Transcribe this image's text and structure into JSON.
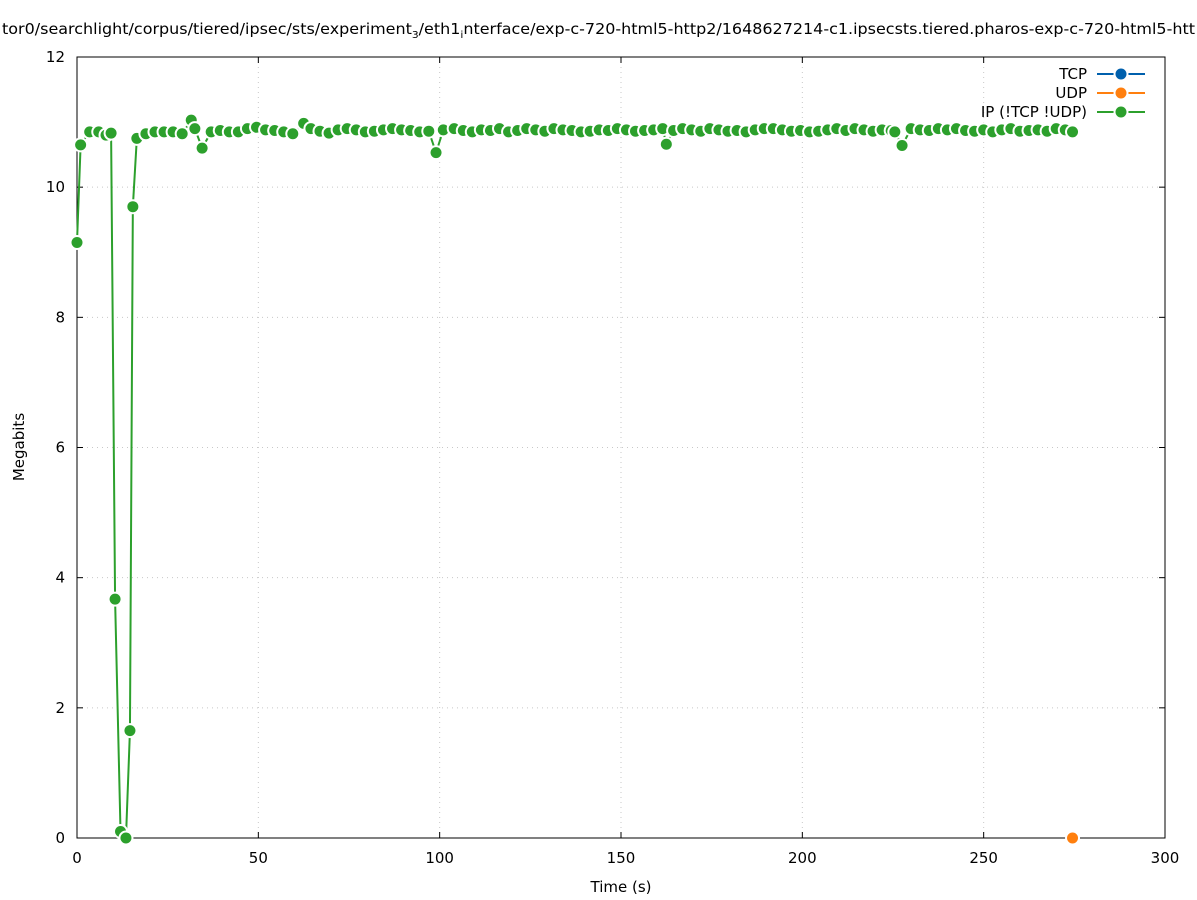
{
  "chart_data": {
    "type": "line",
    "title_parts": [
      "tor0/searchlight/corpus/tiered/ipsec/sts/experiment",
      "3",
      "/eth1",
      "i",
      "nterface/exp-c-720-html5-http2/1648627214-c1.ipsecsts.tiered.pharos-exp-c-720-html5-htt"
    ],
    "xlabel": "Time (s)",
    "ylabel": "Megabits",
    "xlim": [
      0,
      300
    ],
    "ylim": [
      0,
      12
    ],
    "xticks": [
      0,
      50,
      100,
      150,
      200,
      250,
      300
    ],
    "yticks": [
      0,
      2,
      4,
      6,
      8,
      10,
      12
    ],
    "grid": true,
    "legend_position": "top-right",
    "series": [
      {
        "name": "TCP",
        "color": "#0060ad",
        "x": [],
        "y": []
      },
      {
        "name": "UDP",
        "color": "#ff7f0e",
        "x": [
          274.5
        ],
        "y": [
          0
        ]
      },
      {
        "name": "IP (!TCP  !UDP)",
        "color": "#2ca02c",
        "x": [
          0,
          1,
          3.5,
          6,
          8,
          9.4,
          10.5,
          12,
          13.5,
          14.6,
          15.4,
          16.5,
          19,
          21.5,
          24,
          26.5,
          29,
          31.5,
          32.5,
          34.5,
          37,
          39.5,
          42,
          44.5,
          47,
          49.5,
          52,
          54.5,
          57,
          59.5,
          62.5,
          64.5,
          67,
          69.5,
          72,
          74.5,
          77,
          79.5,
          82,
          84.5,
          87,
          89.5,
          92,
          94.5,
          97,
          99,
          101,
          104,
          106.5,
          109,
          111.5,
          114,
          116.5,
          119,
          121.5,
          124,
          126.5,
          129,
          131.5,
          134,
          136.5,
          139,
          141.5,
          144,
          146.5,
          149,
          151.5,
          154,
          156.5,
          159,
          161.5,
          162.5,
          164.5,
          167,
          169.5,
          172,
          174.5,
          177,
          179.5,
          182,
          184.5,
          187,
          189.5,
          192,
          194.5,
          197,
          199.5,
          202,
          204.5,
          207,
          209.5,
          212,
          214.5,
          217,
          219.5,
          222,
          224.5,
          225.5,
          227.5,
          230,
          232.5,
          235,
          237.5,
          240,
          242.5,
          245,
          247.5,
          250,
          252.5,
          255,
          257.5,
          260,
          262.5,
          265,
          267.5,
          270,
          272.5,
          274.5
        ],
        "y": [
          9.15,
          10.65,
          10.85,
          10.85,
          10.8,
          10.83,
          3.67,
          0.1,
          0,
          1.65,
          9.7,
          10.75,
          10.82,
          10.85,
          10.85,
          10.85,
          10.82,
          11.03,
          10.9,
          10.6,
          10.85,
          10.87,
          10.85,
          10.85,
          10.9,
          10.92,
          10.88,
          10.87,
          10.85,
          10.82,
          10.98,
          10.9,
          10.86,
          10.83,
          10.88,
          10.9,
          10.88,
          10.85,
          10.86,
          10.88,
          10.9,
          10.88,
          10.87,
          10.85,
          10.86,
          10.53,
          10.88,
          10.9,
          10.87,
          10.85,
          10.88,
          10.87,
          10.9,
          10.85,
          10.87,
          10.9,
          10.88,
          10.86,
          10.9,
          10.88,
          10.87,
          10.85,
          10.86,
          10.88,
          10.87,
          10.9,
          10.88,
          10.86,
          10.87,
          10.88,
          10.9,
          10.66,
          10.87,
          10.9,
          10.88,
          10.86,
          10.9,
          10.88,
          10.86,
          10.87,
          10.85,
          10.88,
          10.9,
          10.9,
          10.88,
          10.86,
          10.87,
          10.85,
          10.86,
          10.88,
          10.9,
          10.87,
          10.9,
          10.88,
          10.86,
          10.88,
          10.87,
          10.85,
          10.64,
          10.9,
          10.88,
          10.87,
          10.9,
          10.88,
          10.9,
          10.87,
          10.86,
          10.88,
          10.85,
          10.88,
          10.9,
          10.86,
          10.87,
          10.88,
          10.86,
          10.9,
          10.88,
          10.85
        ]
      }
    ]
  }
}
